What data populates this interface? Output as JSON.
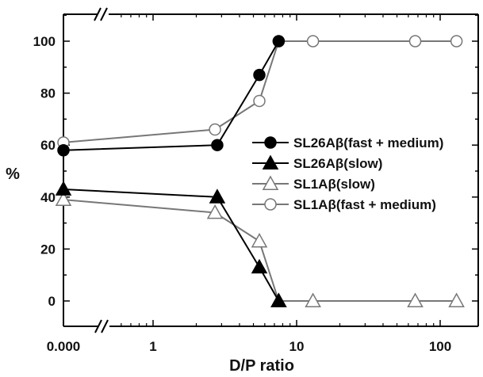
{
  "chart_data": {
    "type": "line",
    "title": "",
    "xlabel": "D/P ratio",
    "ylabel": "%",
    "x_scale": "log (with axis break after 0.000)",
    "ylim": [
      -10,
      110
    ],
    "x_tick_labels": [
      "0.000",
      "1",
      "10",
      "100"
    ],
    "y_tick_labels": [
      "0",
      "20",
      "40",
      "60",
      "80",
      "100"
    ],
    "grid": false,
    "legend_position": "center-right",
    "series": [
      {
        "name": "SL26Aβ(fast + medium)",
        "marker": "filled-circle",
        "color": "#000000",
        "x": [
          0,
          2.8,
          5.5,
          7.5
        ],
        "y": [
          58,
          60,
          87,
          100
        ]
      },
      {
        "name": "SL26Aβ(slow)",
        "marker": "filled-triangle",
        "color": "#000000",
        "x": [
          0,
          2.8,
          5.5,
          7.5
        ],
        "y": [
          43,
          40,
          13,
          0
        ]
      },
      {
        "name": "SL1Aβ(slow)",
        "marker": "open-triangle",
        "color": "#777777",
        "x": [
          0,
          2.7,
          5.5,
          7.5,
          13,
          67,
          130
        ],
        "y": [
          39,
          34,
          23,
          0,
          0,
          0,
          0
        ]
      },
      {
        "name": "SL1Aβ(fast + medium)",
        "marker": "open-circle",
        "color": "#777777",
        "x": [
          0,
          2.7,
          5.5,
          7.5,
          13,
          67,
          130
        ],
        "y": [
          61,
          66,
          77,
          100,
          100,
          100,
          100
        ]
      }
    ]
  }
}
